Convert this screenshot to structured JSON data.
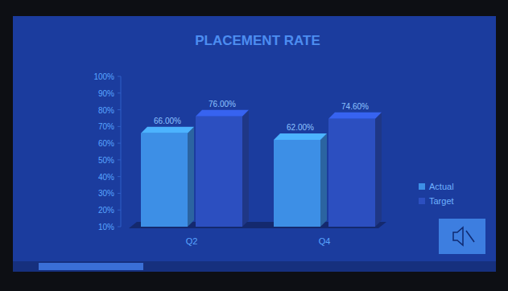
{
  "chart_data": {
    "type": "bar",
    "title": "PLACEMENT RATE",
    "categories": [
      "Q2",
      "Q4"
    ],
    "series": [
      {
        "name": "Actual",
        "color": "#3d8fe6",
        "values": [
          66,
          62
        ],
        "value_labels": [
          "66.00%",
          "62.00%"
        ]
      },
      {
        "name": "Target",
        "color": "#2c4fc0",
        "values": [
          76,
          74.6
        ],
        "value_labels": [
          "76.00%",
          "74.60%"
        ]
      }
    ],
    "ylim": [
      10,
      100
    ],
    "yticks": [
      {
        "value": 10,
        "label": "10%"
      },
      {
        "value": 20,
        "label": "20%"
      },
      {
        "value": 30,
        "label": "30%"
      },
      {
        "value": 40,
        "label": "40%"
      },
      {
        "value": 50,
        "label": "50%"
      },
      {
        "value": 60,
        "label": "60%"
      },
      {
        "value": 70,
        "label": "70%"
      },
      {
        "value": 80,
        "label": "80%"
      },
      {
        "value": 90,
        "label": "90%"
      },
      {
        "value": 100,
        "label": "100%"
      }
    ],
    "grid": false,
    "legend": "right",
    "data_labels": true
  }
}
